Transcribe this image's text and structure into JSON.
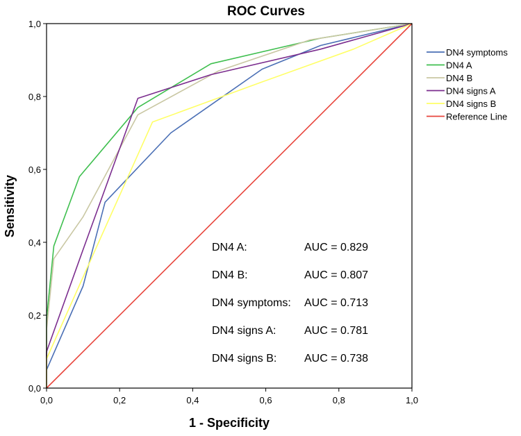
{
  "chart_data": {
    "type": "line",
    "title": "ROC Curves",
    "xlabel": "1 - Specificity",
    "ylabel": "Sensitivity",
    "xlim": [
      0,
      1
    ],
    "ylim": [
      0,
      1
    ],
    "x_ticks": [
      "0,0",
      "0,2",
      "0,4",
      "0,6",
      "0,8",
      "1,0"
    ],
    "y_ticks": [
      "0,0",
      "0,2",
      "0,4",
      "0,6",
      "0,8",
      "1,0"
    ],
    "grid": false,
    "legend_position": "right",
    "series": [
      {
        "name": "DN4 symptoms",
        "color": "#4a6fb5",
        "x": [
          0.0,
          0.0,
          0.1,
          0.16,
          0.34,
          0.59,
          0.75,
          1.0
        ],
        "y": [
          0.0,
          0.05,
          0.28,
          0.51,
          0.7,
          0.875,
          0.94,
          1.0
        ]
      },
      {
        "name": "DN4 A",
        "color": "#3fbf4f",
        "x": [
          0.0,
          0.0,
          0.02,
          0.09,
          0.25,
          0.45,
          0.75,
          1.0
        ],
        "y": [
          0.0,
          0.19,
          0.39,
          0.58,
          0.77,
          0.89,
          0.96,
          1.0
        ]
      },
      {
        "name": "DN4 B",
        "color": "#c9c7a3",
        "x": [
          0.0,
          0.0,
          0.02,
          0.1,
          0.25,
          0.47,
          0.72,
          1.0
        ],
        "y": [
          0.0,
          0.16,
          0.355,
          0.47,
          0.75,
          0.87,
          0.955,
          1.0
        ]
      },
      {
        "name": "DN4 signs A",
        "color": "#7b2d8e",
        "x": [
          0.0,
          0.0,
          0.1,
          0.25,
          0.45,
          0.75,
          1.0
        ],
        "y": [
          0.0,
          0.1,
          0.38,
          0.795,
          0.86,
          0.93,
          1.0
        ]
      },
      {
        "name": "DN4 signs B",
        "color": "#ffff66",
        "x": [
          0.0,
          0.0,
          0.08,
          0.29,
          0.59,
          0.84,
          1.0
        ],
        "y": [
          0.0,
          0.08,
          0.26,
          0.73,
          0.84,
          0.93,
          1.0
        ]
      },
      {
        "name": "Reference Line",
        "color": "#e8453c",
        "x": [
          0.0,
          1.0
        ],
        "y": [
          0.0,
          1.0
        ]
      }
    ],
    "annotations": [
      {
        "label": "DN4 A:",
        "value": "AUC = 0.829"
      },
      {
        "label": "DN4 B:",
        "value": "AUC = 0.807"
      },
      {
        "label": "DN4 symptoms:",
        "value": "AUC = 0.713"
      },
      {
        "label": "DN4 signs A:",
        "value": "AUC = 0.781"
      },
      {
        "label": "DN4 signs B:",
        "value": "AUC = 0.738"
      }
    ]
  }
}
